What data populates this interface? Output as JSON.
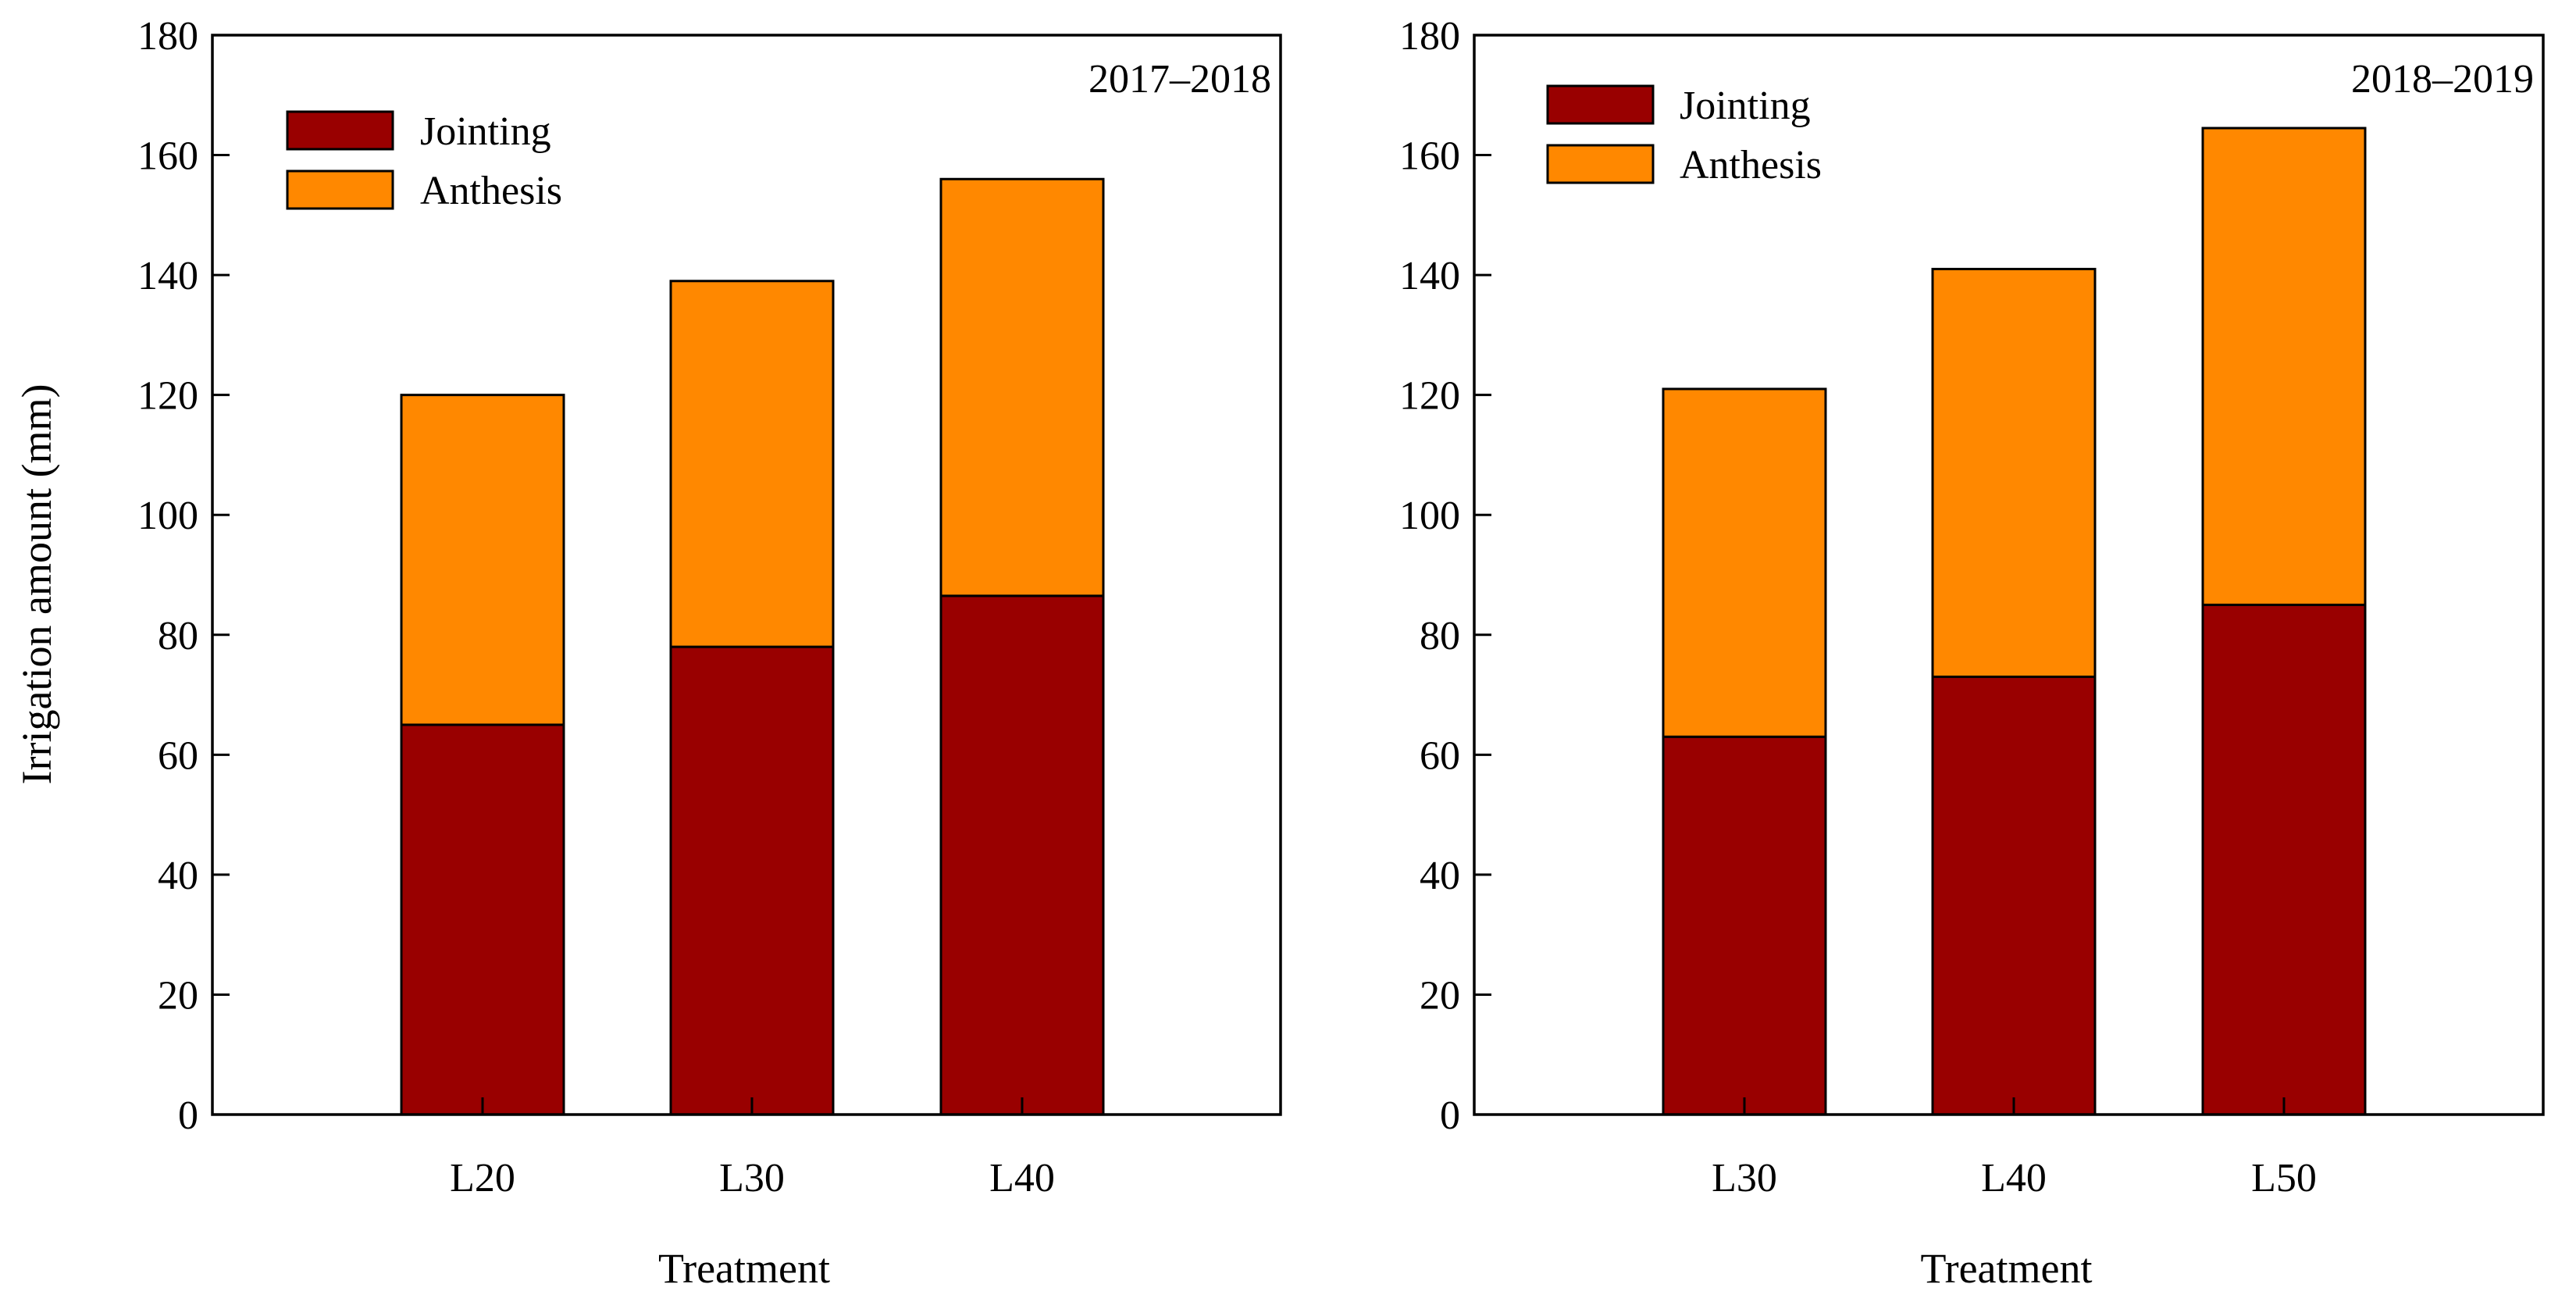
{
  "chart_data": [
    {
      "type": "bar",
      "stacked": true,
      "title": "2017–2018",
      "xlabel": "Treatment",
      "ylabel": "Irrigation amount (mm)",
      "ylim": [
        0,
        180
      ],
      "yticks": [
        0,
        20,
        40,
        60,
        80,
        100,
        120,
        140,
        160,
        180
      ],
      "categories": [
        "L20",
        "L30",
        "L40"
      ],
      "series": [
        {
          "name": "Jointing",
          "color": "#990000",
          "values": [
            65,
            78,
            86.5
          ]
        },
        {
          "name": "Anthesis",
          "color": "#FF8800",
          "values": [
            55,
            61,
            69.5
          ]
        }
      ],
      "legend": "top-left"
    },
    {
      "type": "bar",
      "stacked": true,
      "title": "2018–2019",
      "xlabel": "Treatment",
      "ylabel": "",
      "ylim": [
        0,
        180
      ],
      "yticks": [
        0,
        20,
        40,
        60,
        80,
        100,
        120,
        140,
        160,
        180
      ],
      "categories": [
        "L30",
        "L40",
        "L50"
      ],
      "series": [
        {
          "name": "Jointing",
          "color": "#990000",
          "values": [
            63,
            73,
            85
          ]
        },
        {
          "name": "Anthesis",
          "color": "#FF8800",
          "values": [
            58,
            68,
            79.5
          ]
        }
      ],
      "legend": "top-left"
    }
  ]
}
